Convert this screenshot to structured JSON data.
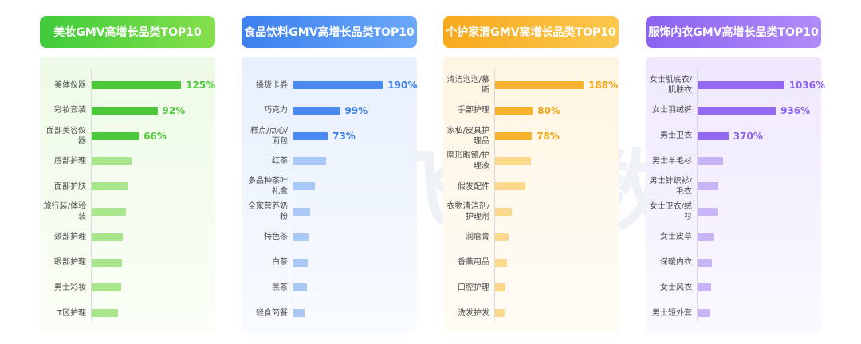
{
  "panels": [
    {
      "title": "美妆GMV高增长品类TOP10",
      "header_gradient": [
        "#3fcb3a",
        "#86df4c"
      ],
      "body_gradient": [
        "#eefbe6",
        "#fafef7"
      ],
      "bar_strong": "#4cc93a",
      "bar_light": "#a9e58b",
      "value_color": "#4cc93a",
      "chart_data": {
        "type": "bar",
        "orientation": "horizontal",
        "categories": [
          "美体仪器",
          "彩妆套装",
          "面部美容仪器",
          "唇部护理",
          "面部护肤",
          "旅行装/体验装",
          "颈部护理",
          "眼部护理",
          "男士彩妆",
          "T区护理"
        ],
        "values": [
          125,
          92,
          66,
          56,
          50,
          48,
          44,
          42,
          41,
          37
        ],
        "value_labels": [
          "125%",
          "92%",
          "66%",
          "",
          "",
          "",
          "",
          "",
          "",
          ""
        ],
        "title": "美妆GMV高增长品类TOP10",
        "xmax": 145
      }
    },
    {
      "title": "食品饮料GMV高增长品类TOP10",
      "header_gradient": [
        "#3d7ff0",
        "#6aa8f7"
      ],
      "body_gradient": [
        "#e8f0fd",
        "#f8fbff"
      ],
      "bar_strong": "#4a8af0",
      "bar_light": "#a9c8f7",
      "value_color": "#3d7ff0",
      "chart_data": {
        "type": "bar",
        "orientation": "horizontal",
        "categories": [
          "操货卡券",
          "巧克力",
          "糕点/点心/面包",
          "红茶",
          "多品种茶叶礼盒",
          "全家营养奶粉",
          "特色茶",
          "白茶",
          "黑茶",
          "轻食简餐"
        ],
        "values": [
          190,
          99,
          73,
          70,
          45,
          36,
          32,
          30,
          28,
          24
        ],
        "value_labels": [
          "190%",
          "99%",
          "73%",
          "",
          "",
          "",
          "",
          "",
          "",
          ""
        ],
        "title": "食品饮料GMV高增长品类TOP10",
        "xmax": 220
      }
    },
    {
      "title": "个护家清GMV高增长品类TOP10",
      "header_gradient": [
        "#f7a91d",
        "#fbc94f"
      ],
      "body_gradient": [
        "#fff5e2",
        "#fffcf6"
      ],
      "bar_strong": "#f6b12d",
      "bar_light": "#fbd88c",
      "value_color": "#f0a416",
      "chart_data": {
        "type": "bar",
        "orientation": "horizontal",
        "categories": [
          "清洁泡泡/慕斯",
          "手部护理",
          "家私/皮具护理品",
          "隐形眼镜/护理液",
          "假发配件",
          "衣物清洁剂/护理剂",
          "润唇膏",
          "香薰用品",
          "口腔护理",
          "洗发护发"
        ],
        "values": [
          188,
          80,
          78,
          76,
          65,
          35,
          28,
          25,
          22,
          21
        ],
        "value_labels": [
          "188%",
          "80%",
          "78%",
          "",
          "",
          "",
          "",
          "",
          "",
          ""
        ],
        "title": "个护家清GMV高增长品类TOP10",
        "xmax": 220
      }
    },
    {
      "title": "服饰内衣GMV高增长品类TOP10",
      "header_gradient": [
        "#8b62f0",
        "#b18cf7"
      ],
      "body_gradient": [
        "#efe8fd",
        "#fbf9ff"
      ],
      "bar_strong": "#9468f0",
      "bar_light": "#c8b3f7",
      "value_color": "#8b62f0",
      "chart_data": {
        "type": "bar",
        "orientation": "horizontal",
        "categories": [
          "女士肌底衣/肌肤衣",
          "女士羽绒裤",
          "男士卫衣",
          "男士羊毛衫",
          "男士针织衫/毛衣",
          "女士卫衣/绒衫",
          "女士皮草",
          "保暖内衣",
          "女士风衣",
          "男士短外套"
        ],
        "values": [
          1036,
          936,
          370,
          300,
          250,
          240,
          190,
          170,
          160,
          140
        ],
        "value_labels": [
          "1036%",
          "936%",
          "370%",
          "",
          "",
          "",
          "",
          "",
          "",
          ""
        ],
        "title": "服饰内衣GMV高增长品类TOP10",
        "xmax": 1240
      }
    }
  ],
  "watermark": "飞瓜数据"
}
